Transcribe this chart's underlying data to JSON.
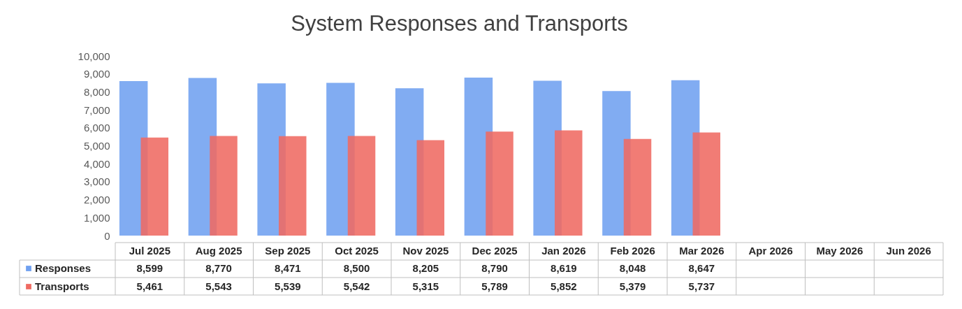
{
  "chart_data": {
    "type": "bar",
    "title": "System Responses and Transports",
    "categories": [
      "Jul 2025",
      "Aug 2025",
      "Sep 2025",
      "Oct 2025",
      "Nov 2025",
      "Dec 2025",
      "Jan 2026",
      "Feb 2026",
      "Mar 2026",
      "Apr 2026",
      "May 2026",
      "Jun 2026"
    ],
    "series": [
      {
        "name": "Responses",
        "color": "#6fa0f0",
        "values": [
          8599,
          8770,
          8471,
          8500,
          8205,
          8790,
          8619,
          8048,
          8647,
          null,
          null,
          null
        ],
        "value_labels": [
          "8,599",
          "8,770",
          "8,471",
          "8,500",
          "8,205",
          "8,790",
          "8,619",
          "8,048",
          "8,647",
          null,
          null,
          null
        ]
      },
      {
        "name": "Transports",
        "color": "#ef6a62",
        "values": [
          5461,
          5543,
          5539,
          5542,
          5315,
          5789,
          5852,
          5379,
          5737,
          null,
          null,
          null
        ],
        "value_labels": [
          "5,461",
          "5,543",
          "5,539",
          "5,542",
          "5,315",
          "5,789",
          "5,852",
          "5,379",
          "5,737",
          null,
          null,
          null
        ]
      }
    ],
    "ylim": [
      0,
      10000
    ],
    "yticks": [
      0,
      {
        "value": 1000,
        "label": "1,000"
      },
      {
        "value": 2000,
        "label": "2,000"
      },
      {
        "value": 3000,
        "label": "3,000"
      },
      {
        "value": 4000,
        "label": "4,000"
      },
      {
        "value": 5000,
        "label": "5,000"
      },
      {
        "value": 6000,
        "label": "6,000"
      },
      {
        "value": 7000,
        "label": "7,000"
      },
      {
        "value": 8000,
        "label": "8,000"
      },
      {
        "value": 9000,
        "label": "9,000"
      },
      {
        "value": 10000,
        "label": "10,000"
      }
    ],
    "grid": false,
    "legend": "bottom left"
  }
}
